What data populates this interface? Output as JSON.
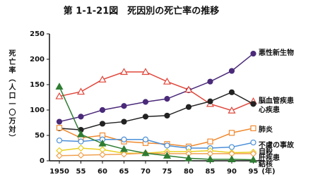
{
  "chart_data": {
    "type": "line",
    "title": "第 1-1-21図　死因別の死亡率の推移",
    "y_label": "死亡率（人口一〇万対）",
    "x_unit": "(年)",
    "categories": [
      "1950",
      "55",
      "60",
      "65",
      "70",
      "75",
      "80",
      "85",
      "90",
      "95"
    ],
    "ylim": [
      0,
      250
    ],
    "yticks": [
      0,
      50,
      100,
      150,
      200,
      250
    ],
    "series": [
      {
        "name": "悪性新生物",
        "color": "#4b2a7a",
        "marker": "circle-filled",
        "values": [
          77,
          87,
          100,
          108,
          116,
          122,
          139,
          156,
          177,
          211
        ]
      },
      {
        "name": "脳血管疾患",
        "color": "#e0463a",
        "marker": "triangle-open",
        "values": [
          127,
          136,
          160,
          175,
          175,
          156,
          140,
          112,
          99,
          117
        ]
      },
      {
        "name": "心疾患",
        "color": "#222222",
        "marker": "circle-filled",
        "values": [
          64,
          61,
          73,
          77,
          87,
          89,
          106,
          117,
          135,
          112
        ]
      },
      {
        "name": "肺炎",
        "color": "#f08a30",
        "marker": "square-open",
        "values": [
          65,
          45,
          50,
          38,
          35,
          33,
          28,
          38,
          55,
          64
        ]
      },
      {
        "name": "不慮の事故",
        "color": "#4a8fd8",
        "marker": "circle-open",
        "values": [
          40,
          38,
          42,
          42,
          42,
          30,
          25,
          25,
          27,
          36
        ]
      },
      {
        "name": "自殺",
        "color": "#e8d020",
        "marker": "diamond-open",
        "values": [
          20,
          25,
          22,
          15,
          15,
          18,
          18,
          20,
          16,
          17
        ]
      },
      {
        "name": "肝疾患",
        "color": "#f0a050",
        "marker": "diamond-open",
        "values": [
          10,
          11,
          12,
          13,
          15,
          14,
          14,
          14,
          14,
          14
        ]
      },
      {
        "name": "結核",
        "color": "#2e7d32",
        "marker": "triangle-filled",
        "values": [
          146,
          52,
          34,
          23,
          15,
          10,
          5,
          3,
          3,
          2
        ]
      }
    ]
  }
}
